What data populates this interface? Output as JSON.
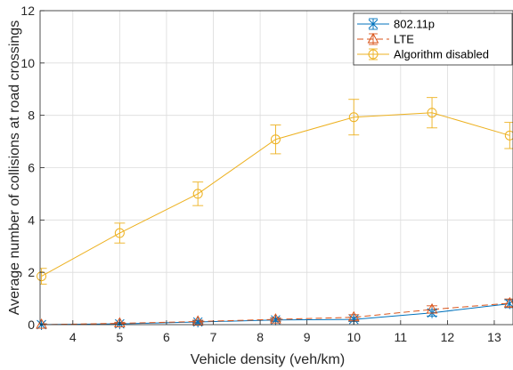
{
  "chart_data": {
    "type": "line",
    "xlabel": "Vehicle density (veh/km)",
    "ylabel": "Average number of collisions at road crossings",
    "xlim": [
      3.3,
      13.4
    ],
    "ylim": [
      0,
      12
    ],
    "xticks": [
      4,
      5,
      6,
      7,
      8,
      9,
      10,
      11,
      12,
      13
    ],
    "yticks": [
      0,
      2,
      4,
      6,
      8,
      10,
      12
    ],
    "grid": true,
    "legend_position": "top-right",
    "x": [
      3.33,
      5.0,
      6.67,
      8.33,
      10.0,
      11.67,
      13.33
    ],
    "series": [
      {
        "name": "802.11p",
        "color": "#0072bd",
        "marker": "x-star",
        "line_style": "solid",
        "values": [
          0.0,
          0.03,
          0.1,
          0.18,
          0.2,
          0.45,
          0.8
        ],
        "error": [
          0.03,
          0.03,
          0.05,
          0.06,
          0.08,
          0.12,
          0.15
        ]
      },
      {
        "name": "LTE",
        "color": "#d95319",
        "marker": "triangle",
        "line_style": "dashed",
        "values": [
          0.0,
          0.05,
          0.12,
          0.2,
          0.28,
          0.58,
          0.82
        ],
        "error": [
          0.03,
          0.04,
          0.05,
          0.06,
          0.1,
          0.14,
          0.16
        ]
      },
      {
        "name": "Algorithm disabled",
        "color": "#edb120",
        "marker": "circle",
        "line_style": "solid",
        "values": [
          1.85,
          3.5,
          5.0,
          7.08,
          7.93,
          8.1,
          7.23
        ],
        "error": [
          0.3,
          0.38,
          0.45,
          0.55,
          0.68,
          0.58,
          0.5
        ]
      }
    ]
  }
}
